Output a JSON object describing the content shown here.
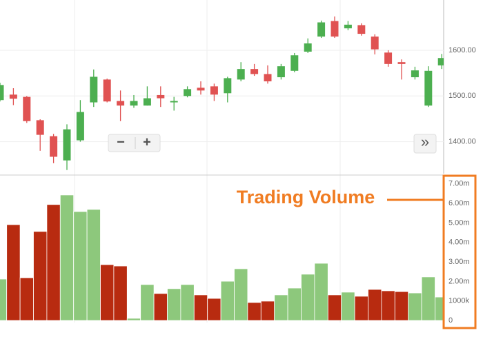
{
  "chart_data": [
    {
      "type": "candlestick",
      "open": [
        1491,
        1503,
        1498,
        1447,
        1412,
        1359,
        1403,
        1486,
        1536,
        1489,
        1479,
        1479,
        1502,
        1486,
        1500,
        1518,
        1521,
        1506,
        1536,
        1559,
        1548,
        1541,
        1555,
        1597,
        1630,
        1664,
        1648,
        1655,
        1630,
        1595,
        1574,
        1541,
        1479,
        1567
      ],
      "high": [
        1529,
        1517,
        1500,
        1449,
        1417,
        1438,
        1491,
        1558,
        1538,
        1512,
        1502,
        1521,
        1521,
        1498,
        1521,
        1532,
        1527,
        1542,
        1574,
        1570,
        1567,
        1570,
        1594,
        1626,
        1665,
        1674,
        1664,
        1659,
        1635,
        1600,
        1580,
        1564,
        1565,
        1592
      ],
      "low": [
        1488,
        1480,
        1441,
        1380,
        1353,
        1338,
        1400,
        1476,
        1486,
        1445,
        1474,
        1479,
        1476,
        1468,
        1497,
        1503,
        1489,
        1486,
        1532,
        1544,
        1527,
        1536,
        1552,
        1594,
        1627,
        1627,
        1644,
        1632,
        1591,
        1564,
        1536,
        1536,
        1476,
        1559
      ],
      "close": [
        1524,
        1494,
        1445,
        1415,
        1367,
        1427,
        1465,
        1542,
        1488,
        1479,
        1489,
        1495,
        1495,
        1489,
        1515,
        1512,
        1503,
        1539,
        1559,
        1548,
        1532,
        1565,
        1589,
        1615,
        1661,
        1630,
        1656,
        1636,
        1602,
        1570,
        1570,
        1556,
        1555,
        1583
      ],
      "up_color": "#4caf50",
      "down_color": "#e05252",
      "ylim": [
        1330,
        1710
      ],
      "yticks": [
        {
          "value": 1400,
          "label": "1400.00"
        },
        {
          "value": 1500,
          "label": "1500.00"
        },
        {
          "value": 1600,
          "label": "1600.00"
        }
      ],
      "grid": true
    },
    {
      "type": "bar",
      "values": [
        2120000,
        4910000,
        2190000,
        4560000,
        5940000,
        6430000,
        5580000,
        5690000,
        2860000,
        2790000,
        110000,
        1840000,
        1380000,
        1630000,
        1840000,
        1310000,
        1130000,
        2010000,
        2650000,
        920000,
        990000,
        1310000,
        1660000,
        2370000,
        2930000,
        1310000,
        1450000,
        1240000,
        1590000,
        1520000,
        1480000,
        1410000,
        2230000,
        1200000
      ],
      "up_color": "#8dc87c",
      "down_color": "#b82b10",
      "ylim": [
        0,
        7380000
      ],
      "yticks": [
        0,
        {
          "value": 1000000,
          "label": "1000k"
        },
        {
          "value": 2000000,
          "label": "2.00m"
        },
        {
          "value": 3000000,
          "label": "3.00m"
        },
        {
          "value": 4000000,
          "label": "4.00m"
        },
        {
          "value": 5000000,
          "label": "5.00m"
        },
        {
          "value": 6000000,
          "label": "6.00m"
        },
        {
          "value": 7000000,
          "label": "7.00m"
        }
      ],
      "annotation": "Trading Volume",
      "highlight_color": "#f07c22"
    }
  ],
  "controls": {
    "zoom_out": "−",
    "zoom_in": "+",
    "scroll": "»"
  }
}
